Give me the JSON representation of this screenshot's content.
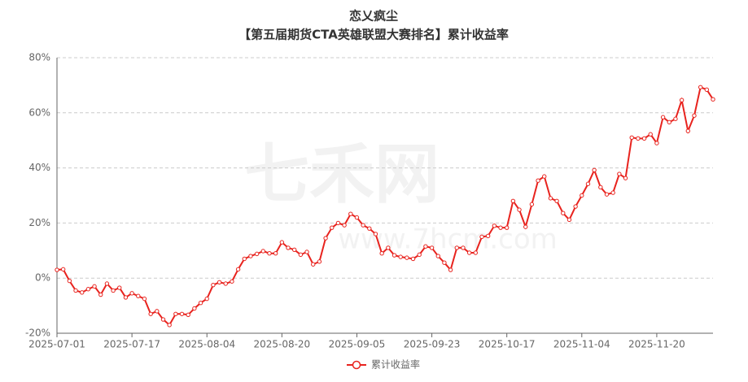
{
  "watermark": {
    "name": "七禾网",
    "url": "www.7hcm.com"
  },
  "chart_data": {
    "type": "line",
    "title": "恋乂疯尘",
    "subtitle": "【第五届期货CTA英雄联盟大赛排名】累计收益率",
    "categories": [
      "2025-07-01",
      null,
      null,
      null,
      null,
      null,
      null,
      null,
      null,
      null,
      null,
      null,
      "2025-07-17",
      null,
      null,
      null,
      null,
      null,
      null,
      null,
      null,
      null,
      null,
      null,
      "2025-08-04",
      null,
      null,
      null,
      null,
      null,
      null,
      null,
      null,
      null,
      null,
      null,
      "2025-08-20",
      null,
      null,
      null,
      null,
      null,
      null,
      null,
      null,
      null,
      null,
      null,
      "2025-09-05",
      null,
      null,
      null,
      null,
      null,
      null,
      null,
      null,
      null,
      null,
      null,
      "2025-09-23",
      null,
      null,
      null,
      null,
      null,
      null,
      null,
      null,
      null,
      null,
      null,
      "2025-10-17",
      null,
      null,
      null,
      null,
      null,
      null,
      null,
      null,
      null,
      null,
      null,
      "2025-11-04",
      null,
      null,
      null,
      null,
      null,
      null,
      null,
      null,
      null,
      null,
      null,
      "2025-11-20",
      null,
      null,
      null,
      null,
      null,
      null,
      null,
      null,
      null
    ],
    "series": [
      {
        "name": "累计收益率",
        "color": "#e8231e",
        "values": [
          3,
          3.2,
          -1,
          -4.5,
          -5.2,
          -4,
          -3,
          -6,
          -2,
          -4.5,
          -3.5,
          -7,
          -5.5,
          -6.5,
          -7.5,
          -13,
          -12,
          -15,
          -17,
          -13,
          -13,
          -13.3,
          -11,
          -9,
          -7.5,
          -2.5,
          -1.5,
          -2,
          -1.2,
          3.2,
          7,
          8,
          8.8,
          9.8,
          9,
          9,
          13,
          11,
          10.3,
          8.5,
          9.5,
          5,
          6,
          14.5,
          18.3,
          20,
          19.2,
          23.3,
          22,
          19.2,
          18,
          16,
          9,
          11,
          8.3,
          7.7,
          7.4,
          7,
          8.5,
          11.5,
          11,
          8,
          5.6,
          3,
          11,
          11,
          9.2,
          9.2,
          15,
          15.3,
          19,
          18.3,
          18.3,
          28,
          24.8,
          18.6,
          26.8,
          35.4,
          36.9,
          29,
          28,
          23.6,
          21.2,
          26,
          30,
          34.2,
          39.2,
          33,
          30.4,
          31,
          37.8,
          36.3,
          51,
          50.7,
          50.7,
          52.2,
          49,
          58.4,
          56.6,
          57.8,
          64.6,
          53.4,
          59,
          69.3,
          68.4,
          64.9
        ]
      }
    ],
    "ylim": [
      -20,
      80
    ],
    "yticks": [
      {
        "value": -20,
        "label": "-20%"
      },
      {
        "value": 0,
        "label": "0%"
      },
      {
        "value": 20,
        "label": "20%"
      },
      {
        "value": 40,
        "label": "40%"
      },
      {
        "value": 60,
        "label": "60%"
      },
      {
        "value": 80,
        "label": "80%"
      }
    ],
    "grid": true,
    "legend": "bottom"
  }
}
